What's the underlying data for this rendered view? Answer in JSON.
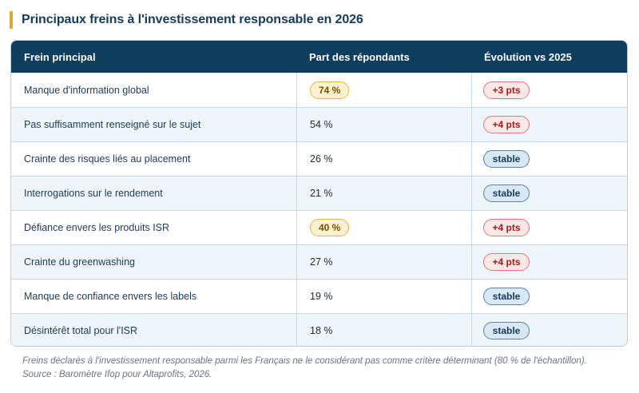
{
  "title": "Principaux freins à l'investissement responsable en 2026",
  "table": {
    "headers": [
      "Frein principal",
      "Part des répondants",
      "Évolution vs 2025"
    ],
    "rows": [
      {
        "frein": "Manque d'information global",
        "part": "74 %",
        "highlight": true,
        "evolution": "+3 pts",
        "trend": "up"
      },
      {
        "frein": "Pas suffisamment renseigné sur le sujet",
        "part": "54 %",
        "highlight": false,
        "evolution": "+4 pts",
        "trend": "up"
      },
      {
        "frein": "Crainte des risques liés au placement",
        "part": "26 %",
        "highlight": false,
        "evolution": "stable",
        "trend": "stable"
      },
      {
        "frein": "Interrogations sur le rendement",
        "part": "21 %",
        "highlight": false,
        "evolution": "stable",
        "trend": "stable"
      },
      {
        "frein": "Défiance envers les produits ISR",
        "part": "40 %",
        "highlight": true,
        "evolution": "+4 pts",
        "trend": "up"
      },
      {
        "frein": "Crainte du greenwashing",
        "part": "27 %",
        "highlight": false,
        "evolution": "+4 pts",
        "trend": "up"
      },
      {
        "frein": "Manque de confiance envers les labels",
        "part": "19 %",
        "highlight": false,
        "evolution": "stable",
        "trend": "stable"
      },
      {
        "frein": "Désintérêt total pour l'ISR",
        "part": "18 %",
        "highlight": false,
        "evolution": "stable",
        "trend": "stable"
      }
    ]
  },
  "footnote": {
    "line1": "Freins déclarés à l'investissement responsable parmi les Français ne le considérant pas comme critère déterminant (80 % de l'échantillon).",
    "line2": "Source : Baromètre Ifop pour Altaprofits, 2026."
  },
  "colors": {
    "header_bg": "#0f3d5e",
    "accent": "#e8a628",
    "highlight_bg": "#fdf1cf",
    "up_badge": "#fde8e8",
    "stable_badge": "#d9e8f5"
  }
}
